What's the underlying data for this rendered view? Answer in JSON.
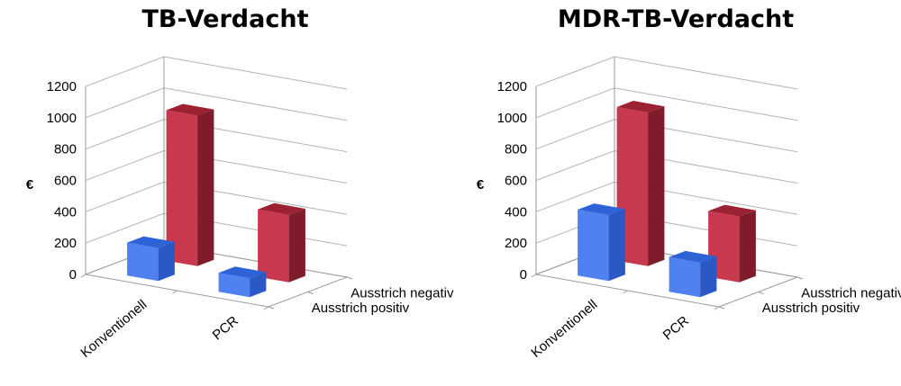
{
  "chart_data": [
    {
      "type": "bar",
      "title": "TB-Verdacht",
      "ylabel": "€",
      "ylim": [
        0,
        1200
      ],
      "yticks": [
        0,
        200,
        400,
        600,
        800,
        1000,
        1200
      ],
      "categories": [
        "Konventionell",
        "PCR"
      ],
      "series": [
        {
          "name": "Ausstrich positiv",
          "values": [
            210,
            120
          ]
        },
        {
          "name": "Ausstrich negativ",
          "values": [
            960,
            430
          ]
        }
      ]
    },
    {
      "type": "bar",
      "title": "MDR-TB-Verdacht",
      "ylabel": "€",
      "ylim": [
        0,
        1200
      ],
      "yticks": [
        0,
        200,
        400,
        600,
        800,
        1000,
        1200
      ],
      "categories": [
        "Konventionell",
        "PCR"
      ],
      "series": [
        {
          "name": "Ausstrich positiv",
          "values": [
            420,
            220
          ]
        },
        {
          "name": "Ausstrich negativ",
          "values": [
            980,
            420
          ]
        }
      ]
    }
  ],
  "colors": {
    "series": [
      "#4f81f0",
      "#c8394f"
    ],
    "series_top": [
      "#2e63d8",
      "#9c2233"
    ],
    "series_side": [
      "#2a58c4",
      "#7e1c2b"
    ],
    "axis": "#9a9a9a",
    "grid": "#b4b4b4"
  }
}
